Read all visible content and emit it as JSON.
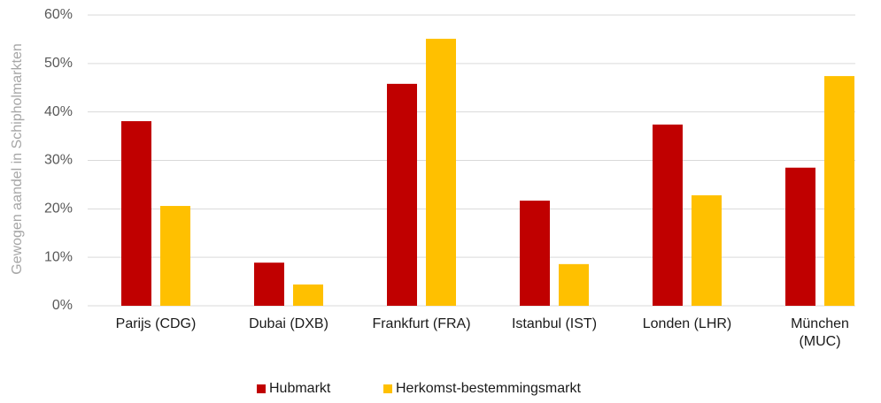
{
  "chart_data": {
    "type": "bar",
    "y_label": "Gewogen aandel in Schipholmarkten",
    "categories": [
      "Parijs (CDG)",
      "Dubai (DXB)",
      "Frankfurt (FRA)",
      "Istanbul (IST)",
      "Londen (LHR)",
      "München\n(MUC)"
    ],
    "series": [
      {
        "name": "Hubmarkt",
        "color": "#c00000",
        "values": [
          38.1,
          8.9,
          45.8,
          21.7,
          37.4,
          28.5
        ]
      },
      {
        "name": "Herkomst-bestemmingsmarkt",
        "color": "#ffc000",
        "values": [
          20.6,
          4.4,
          55.1,
          8.6,
          22.8,
          47.4
        ]
      }
    ],
    "ylim": [
      0,
      60
    ],
    "yticks": [
      {
        "value": 0,
        "label": "0%"
      },
      {
        "value": 10,
        "label": "10%"
      },
      {
        "value": 20,
        "label": "20%"
      },
      {
        "value": 30,
        "label": "30%"
      },
      {
        "value": 40,
        "label": "40%"
      },
      {
        "value": 50,
        "label": "50%"
      },
      {
        "value": 60,
        "label": "60%"
      }
    ],
    "grid": true
  }
}
